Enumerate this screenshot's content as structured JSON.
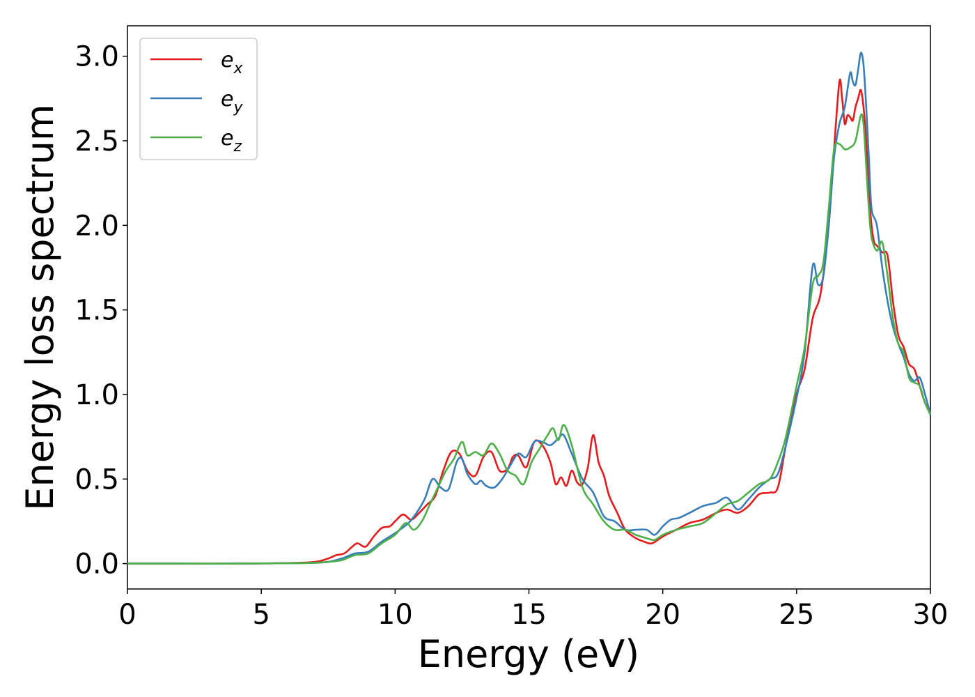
{
  "chart_data": {
    "type": "line",
    "title": "",
    "xlabel": "Energy (eV)",
    "ylabel": "Energy loss spectrum",
    "xlim": [
      0,
      30
    ],
    "ylim": [
      -0.15,
      3.18
    ],
    "xticks": [
      0,
      5,
      10,
      15,
      20,
      25,
      30
    ],
    "yticks": [
      0.0,
      0.5,
      1.0,
      1.5,
      2.0,
      2.5,
      3.0
    ],
    "grid": false,
    "legend_position": "top-left",
    "series": [
      {
        "name": "e",
        "subscript": "x",
        "color": "#e41a1c",
        "x": [
          0,
          2,
          4,
          6,
          7,
          7.5,
          7.8,
          8.1,
          8.4,
          8.6,
          8.9,
          9.2,
          9.5,
          9.8,
          10.0,
          10.3,
          10.6,
          10.9,
          11.2,
          11.5,
          11.8,
          12.1,
          12.4,
          12.7,
          13.0,
          13.3,
          13.6,
          13.9,
          14.2,
          14.4,
          14.6,
          14.9,
          15.2,
          15.5,
          15.8,
          16.0,
          16.2,
          16.4,
          16.6,
          16.8,
          17.0,
          17.2,
          17.4,
          17.6,
          17.8,
          18.0,
          18.3,
          18.6,
          19.0,
          19.3,
          19.6,
          20.0,
          20.5,
          21.0,
          21.5,
          22.0,
          22.4,
          22.8,
          23.2,
          23.6,
          24.0,
          24.3,
          24.6,
          25.0,
          25.3,
          25.6,
          25.9,
          26.2,
          26.4,
          26.6,
          26.7,
          26.8,
          26.9,
          27.0,
          27.1,
          27.2,
          27.3,
          27.4,
          27.5,
          27.6,
          27.7,
          27.8,
          27.9,
          28.0,
          28.2,
          28.4,
          28.6,
          28.8,
          29.0,
          29.2,
          29.4,
          29.6,
          29.8,
          30.0
        ],
        "y": [
          0.0,
          0.0,
          0.0,
          0.003,
          0.01,
          0.03,
          0.05,
          0.06,
          0.1,
          0.12,
          0.1,
          0.16,
          0.21,
          0.22,
          0.25,
          0.29,
          0.26,
          0.3,
          0.35,
          0.4,
          0.55,
          0.66,
          0.65,
          0.55,
          0.52,
          0.63,
          0.66,
          0.55,
          0.56,
          0.63,
          0.64,
          0.57,
          0.72,
          0.7,
          0.6,
          0.47,
          0.51,
          0.46,
          0.55,
          0.48,
          0.47,
          0.57,
          0.76,
          0.6,
          0.52,
          0.4,
          0.3,
          0.2,
          0.15,
          0.13,
          0.12,
          0.16,
          0.2,
          0.24,
          0.26,
          0.3,
          0.32,
          0.3,
          0.34,
          0.41,
          0.42,
          0.45,
          0.7,
          1.0,
          1.15,
          1.45,
          1.6,
          2.0,
          2.45,
          2.85,
          2.75,
          2.6,
          2.65,
          2.64,
          2.62,
          2.7,
          2.75,
          2.8,
          2.7,
          2.5,
          2.2,
          2.0,
          1.9,
          1.88,
          1.84,
          1.82,
          1.55,
          1.35,
          1.28,
          1.18,
          1.15,
          1.05,
          0.95,
          0.9
        ]
      },
      {
        "name": "e",
        "subscript": "y",
        "color": "#377eb8",
        "x": [
          0,
          2,
          4,
          6,
          7,
          7.5,
          8.0,
          8.5,
          9.0,
          9.5,
          10.0,
          10.5,
          10.8,
          11.1,
          11.4,
          11.7,
          12.0,
          12.3,
          12.5,
          12.7,
          13.0,
          13.2,
          13.4,
          13.7,
          14.0,
          14.3,
          14.6,
          14.9,
          15.2,
          15.5,
          15.8,
          16.1,
          16.3,
          16.6,
          17.0,
          17.4,
          17.8,
          18.2,
          18.6,
          19.0,
          19.4,
          19.7,
          20.0,
          20.3,
          20.6,
          21.0,
          21.5,
          22.0,
          22.4,
          22.8,
          23.2,
          23.6,
          24.0,
          24.3,
          24.6,
          25.0,
          25.3,
          25.6,
          25.8,
          26.0,
          26.2,
          26.4,
          26.6,
          26.8,
          27.0,
          27.1,
          27.2,
          27.3,
          27.4,
          27.5,
          27.6,
          27.7,
          27.8,
          28.0,
          28.2,
          28.4,
          28.6,
          28.8,
          29.0,
          29.2,
          29.4,
          29.6,
          29.8,
          30.0
        ],
        "y": [
          0.0,
          0.0,
          0.0,
          0.002,
          0.005,
          0.01,
          0.03,
          0.06,
          0.07,
          0.13,
          0.18,
          0.24,
          0.3,
          0.38,
          0.5,
          0.45,
          0.44,
          0.6,
          0.62,
          0.53,
          0.47,
          0.49,
          0.46,
          0.45,
          0.5,
          0.58,
          0.65,
          0.63,
          0.72,
          0.72,
          0.7,
          0.74,
          0.76,
          0.65,
          0.5,
          0.42,
          0.28,
          0.25,
          0.2,
          0.2,
          0.2,
          0.17,
          0.22,
          0.26,
          0.27,
          0.3,
          0.34,
          0.36,
          0.39,
          0.32,
          0.38,
          0.45,
          0.5,
          0.53,
          0.7,
          0.98,
          1.25,
          1.76,
          1.65,
          1.7,
          2.0,
          2.4,
          2.6,
          2.7,
          2.9,
          2.85,
          2.83,
          2.92,
          3.02,
          2.95,
          2.7,
          2.4,
          2.1,
          2.0,
          1.75,
          1.55,
          1.4,
          1.3,
          1.22,
          1.12,
          1.08,
          1.1,
          1.0,
          0.88
        ]
      },
      {
        "name": "e",
        "subscript": "z",
        "color": "#4daf4a",
        "x": [
          0,
          2,
          4,
          6,
          7,
          7.5,
          8.0,
          8.5,
          9.0,
          9.5,
          10.0,
          10.4,
          10.7,
          11.0,
          11.3,
          11.6,
          11.9,
          12.2,
          12.5,
          12.7,
          13.0,
          13.3,
          13.6,
          13.9,
          14.2,
          14.5,
          14.8,
          15.1,
          15.4,
          15.7,
          15.9,
          16.1,
          16.3,
          16.6,
          17.0,
          17.4,
          17.8,
          18.2,
          18.6,
          19.0,
          19.4,
          19.7,
          20.0,
          20.5,
          21.0,
          21.5,
          22.0,
          22.4,
          22.8,
          23.2,
          23.6,
          24.0,
          24.3,
          24.6,
          25.0,
          25.3,
          25.6,
          25.8,
          26.0,
          26.2,
          26.4,
          26.6,
          26.8,
          27.0,
          27.2,
          27.4,
          27.5,
          27.6,
          27.7,
          27.8,
          28.0,
          28.2,
          28.4,
          28.6,
          28.8,
          29.0,
          29.2,
          29.4,
          29.6,
          29.8,
          30.0
        ],
        "y": [
          0.0,
          0.0,
          0.0,
          0.002,
          0.005,
          0.01,
          0.02,
          0.05,
          0.06,
          0.12,
          0.17,
          0.24,
          0.2,
          0.25,
          0.35,
          0.45,
          0.55,
          0.62,
          0.72,
          0.64,
          0.66,
          0.64,
          0.71,
          0.65,
          0.55,
          0.52,
          0.47,
          0.6,
          0.68,
          0.76,
          0.8,
          0.73,
          0.82,
          0.7,
          0.45,
          0.35,
          0.25,
          0.2,
          0.2,
          0.17,
          0.15,
          0.14,
          0.17,
          0.2,
          0.22,
          0.24,
          0.3,
          0.35,
          0.37,
          0.42,
          0.47,
          0.5,
          0.6,
          0.75,
          1.05,
          1.28,
          1.65,
          1.7,
          1.78,
          2.1,
          2.45,
          2.48,
          2.45,
          2.46,
          2.5,
          2.65,
          2.6,
          2.35,
          2.1,
          1.93,
          1.85,
          1.9,
          1.7,
          1.45,
          1.3,
          1.25,
          1.1,
          1.07,
          1.05,
          0.95,
          0.88
        ]
      }
    ]
  }
}
